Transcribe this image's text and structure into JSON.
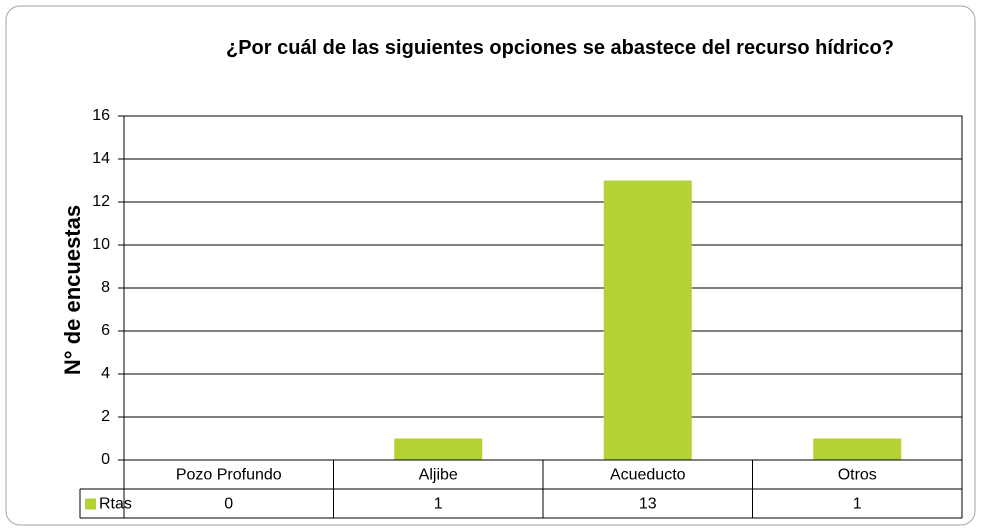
{
  "chart_data": {
    "type": "bar",
    "title": "¿Por cuál de las siguientes opciones se abastece del recurso hídrico?",
    "ylabel": "N° de encuestas",
    "categories": [
      "Pozo Profundo",
      "Aljibe",
      "Acueducto",
      "Otros"
    ],
    "series": [
      {
        "name": "Rtas",
        "color": "#b3d235",
        "values": [
          0,
          1,
          13,
          1
        ]
      }
    ],
    "ylim": [
      0,
      16
    ],
    "yticks": [
      0,
      2,
      4,
      6,
      8,
      10,
      12,
      14,
      16
    ],
    "grid": true,
    "data_table": true
  }
}
